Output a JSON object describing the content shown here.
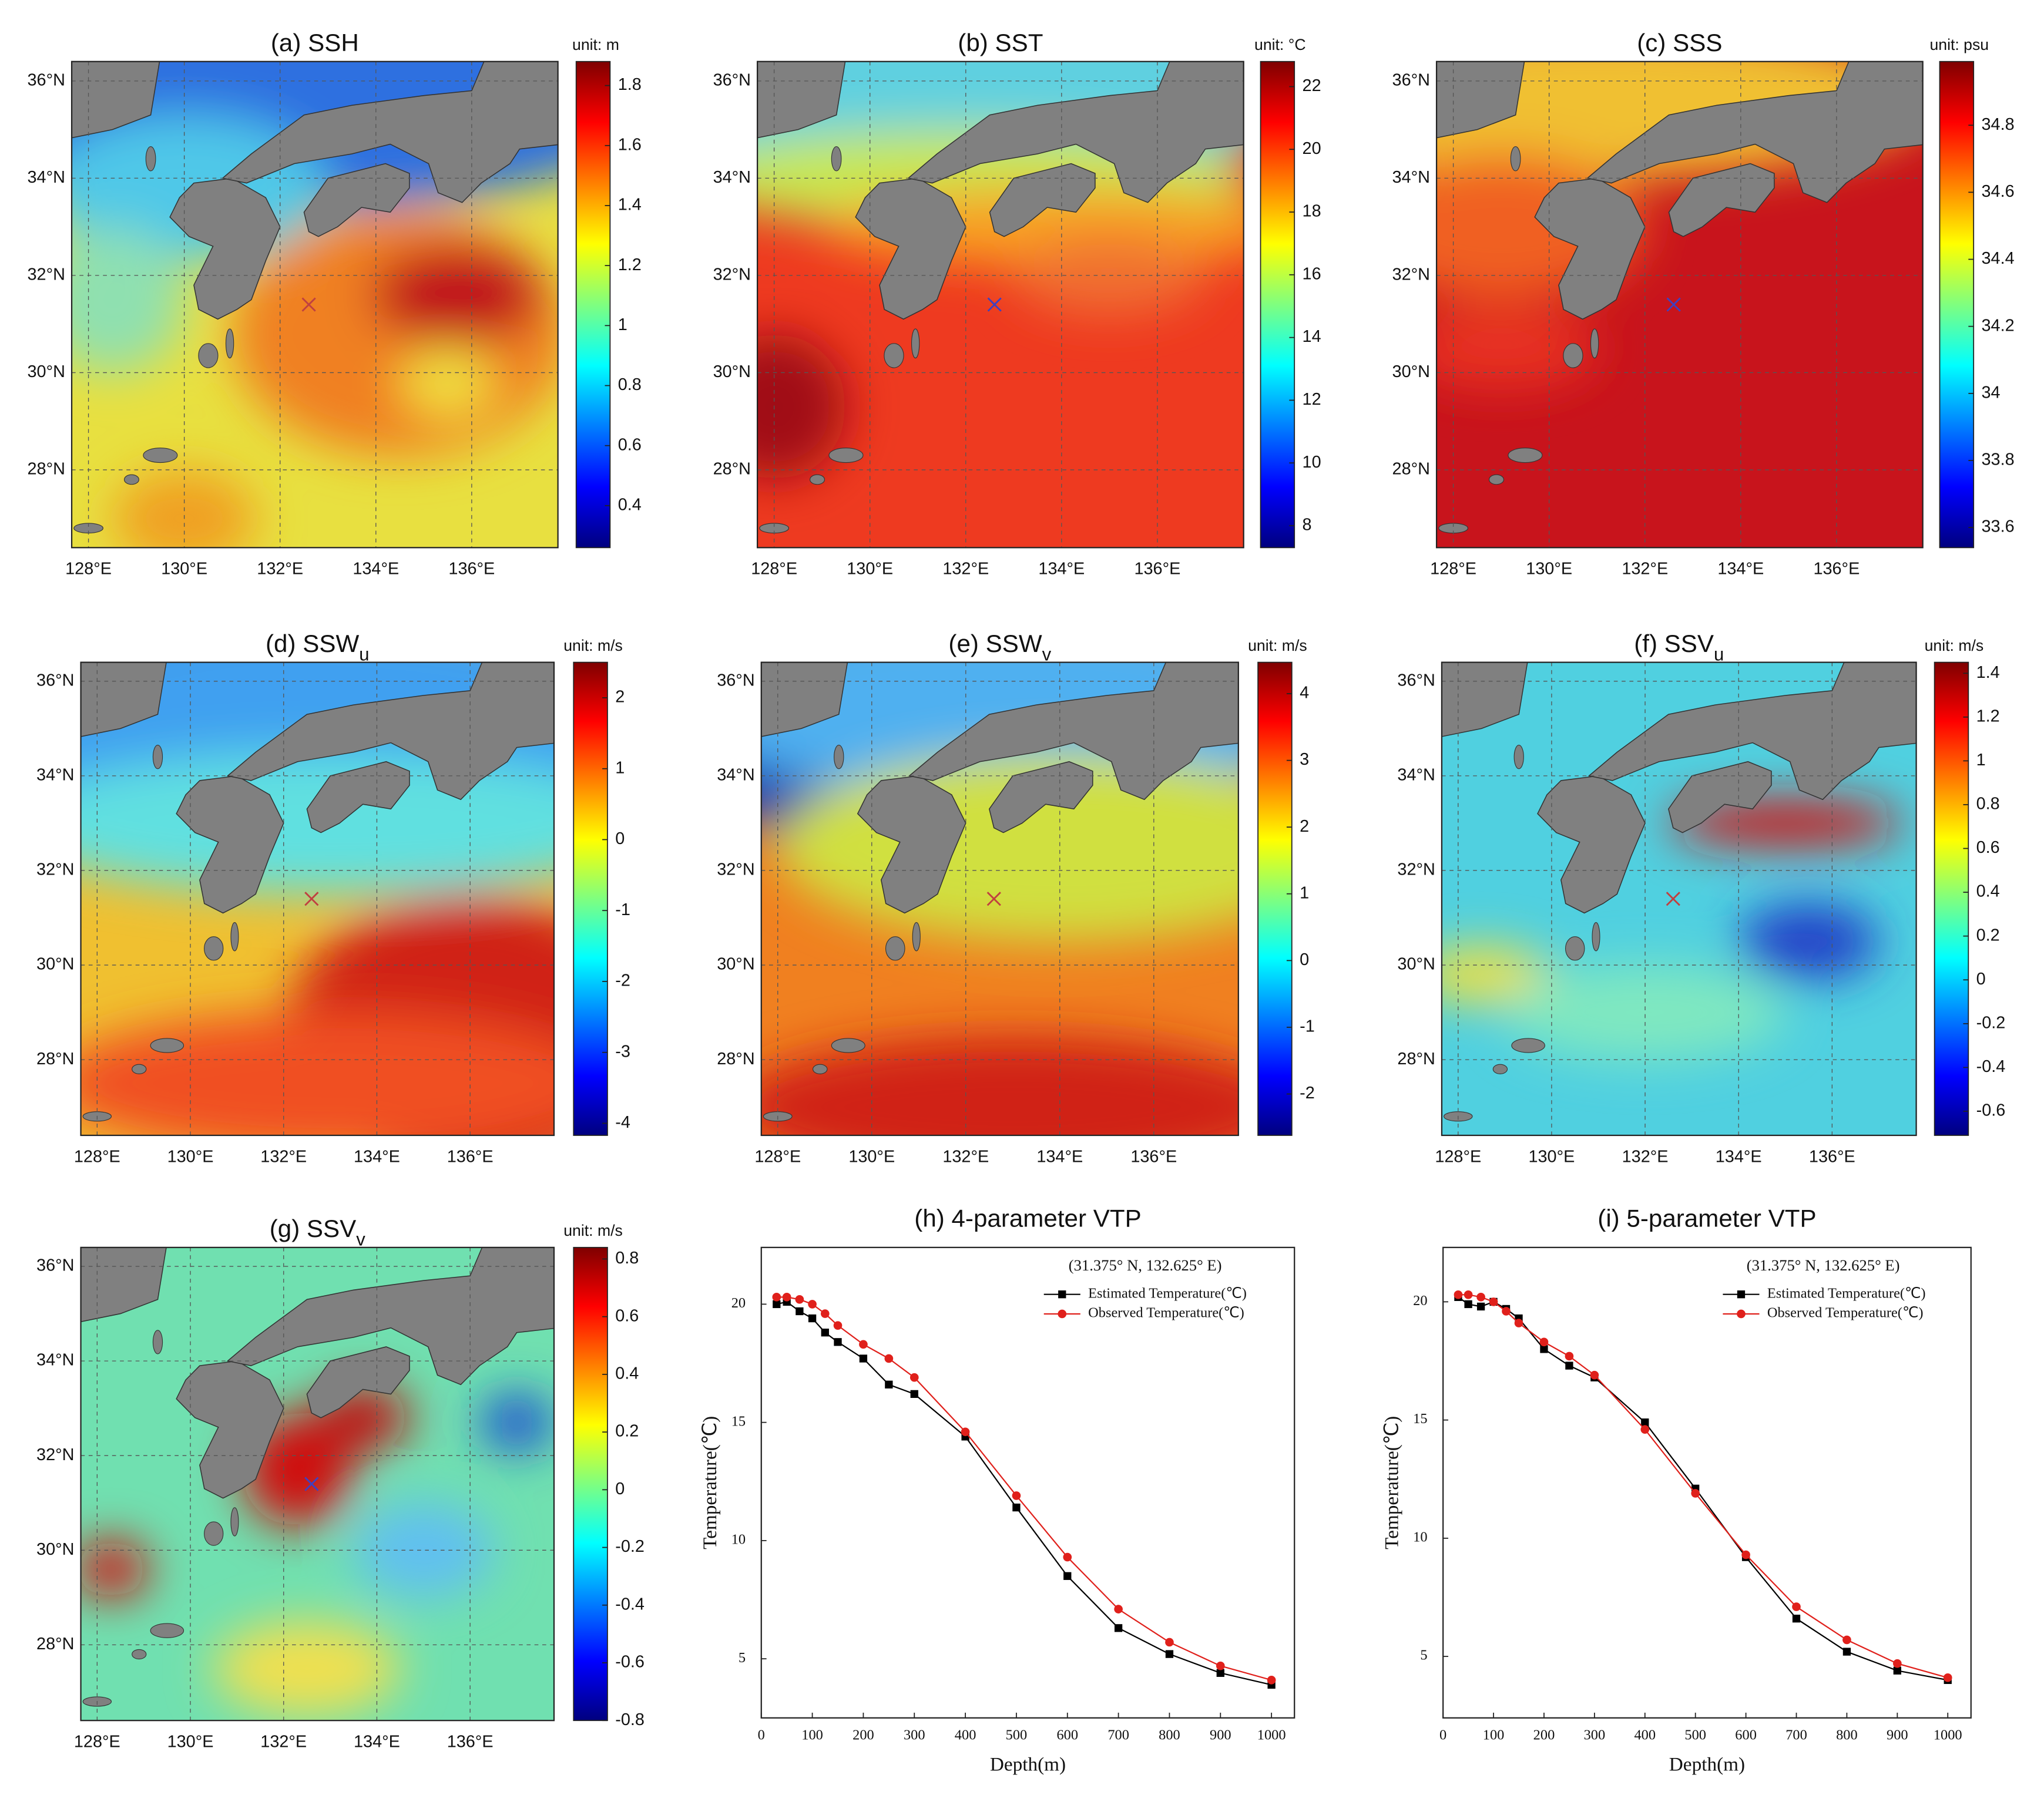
{
  "chart_data": [
    {
      "type": "map",
      "title": "(a) SSH",
      "colorbar_label": "unit: m",
      "colormap": "jet",
      "xlim": [
        127.65,
        137.8
      ],
      "ylim": [
        26.4,
        36.4
      ],
      "xticks": [
        {
          "value": 128,
          "label": "128°E"
        },
        {
          "value": 130,
          "label": "130°E"
        },
        {
          "value": 132,
          "label": "132°E"
        },
        {
          "value": 134,
          "label": "134°E"
        },
        {
          "value": 136,
          "label": "136°E"
        }
      ],
      "yticks": [
        {
          "value": 28,
          "label": "28°N"
        },
        {
          "value": 30,
          "label": "30°N"
        },
        {
          "value": 32,
          "label": "32°N"
        },
        {
          "value": 34,
          "label": "34°N"
        },
        {
          "value": 36,
          "label": "36°N"
        }
      ],
      "clim": [
        0.26,
        1.88
      ],
      "cticks": [
        0.4,
        0.6,
        0.8,
        1,
        1.2,
        1.4,
        1.6,
        1.8
      ],
      "grid": true
    },
    {
      "type": "map",
      "title": "(b) SST",
      "colorbar_label": "unit: °C",
      "colormap": "jet",
      "xlim": [
        127.65,
        137.8
      ],
      "ylim": [
        26.4,
        36.4
      ],
      "xticks": [
        {
          "value": 128,
          "label": "128°E"
        },
        {
          "value": 130,
          "label": "130°E"
        },
        {
          "value": 132,
          "label": "132°E"
        },
        {
          "value": 134,
          "label": "134°E"
        },
        {
          "value": 136,
          "label": "136°E"
        }
      ],
      "yticks": [
        {
          "value": 28,
          "label": "28°N"
        },
        {
          "value": 30,
          "label": "30°N"
        },
        {
          "value": 32,
          "label": "32°N"
        },
        {
          "value": 34,
          "label": "34°N"
        },
        {
          "value": 36,
          "label": "36°N"
        }
      ],
      "clim": [
        7.3,
        22.8
      ],
      "cticks": [
        8,
        10,
        12,
        14,
        16,
        18,
        20,
        22
      ],
      "grid": true
    },
    {
      "type": "map",
      "title": "(c) SSS",
      "colorbar_label": "unit: psu",
      "colormap": "jet",
      "xlim": [
        127.65,
        137.8
      ],
      "ylim": [
        26.4,
        36.4
      ],
      "xticks": [
        {
          "value": 128,
          "label": "128°E"
        },
        {
          "value": 130,
          "label": "130°E"
        },
        {
          "value": 132,
          "label": "132°E"
        },
        {
          "value": 134,
          "label": "134°E"
        },
        {
          "value": 136,
          "label": "136°E"
        }
      ],
      "yticks": [
        {
          "value": 28,
          "label": "28°N"
        },
        {
          "value": 30,
          "label": "30°N"
        },
        {
          "value": 32,
          "label": "32°N"
        },
        {
          "value": 34,
          "label": "34°N"
        },
        {
          "value": 36,
          "label": "36°N"
        }
      ],
      "clim": [
        33.54,
        34.99
      ],
      "cticks": [
        33.6,
        33.8,
        34,
        34.2,
        34.4,
        34.6,
        34.8
      ],
      "grid": true
    },
    {
      "type": "map",
      "title": "(d) SSW",
      "title_subscript": "u",
      "colorbar_label": "unit: m/s",
      "colormap": "jet",
      "xlim": [
        127.65,
        137.8
      ],
      "ylim": [
        26.4,
        36.4
      ],
      "xticks": [
        {
          "value": 128,
          "label": "128°E"
        },
        {
          "value": 130,
          "label": "130°E"
        },
        {
          "value": 132,
          "label": "132°E"
        },
        {
          "value": 134,
          "label": "134°E"
        },
        {
          "value": 136,
          "label": "136°E"
        }
      ],
      "yticks": [
        {
          "value": 28,
          "label": "28°N"
        },
        {
          "value": 30,
          "label": "30°N"
        },
        {
          "value": 32,
          "label": "32°N"
        },
        {
          "value": 34,
          "label": "34°N"
        },
        {
          "value": 36,
          "label": "36°N"
        }
      ],
      "clim": [
        -4.17,
        2.5
      ],
      "cticks": [
        -4,
        -3,
        -2,
        -1,
        0,
        1,
        2
      ],
      "grid": true
    },
    {
      "type": "map",
      "title": "(e) SSW",
      "title_subscript": "v",
      "colorbar_label": "unit: m/s",
      "colormap": "jet",
      "xlim": [
        127.65,
        137.8
      ],
      "ylim": [
        26.4,
        36.4
      ],
      "xticks": [
        {
          "value": 128,
          "label": "128°E"
        },
        {
          "value": 130,
          "label": "130°E"
        },
        {
          "value": 132,
          "label": "132°E"
        },
        {
          "value": 134,
          "label": "134°E"
        },
        {
          "value": 136,
          "label": "136°E"
        }
      ],
      "yticks": [
        {
          "value": 28,
          "label": "28°N"
        },
        {
          "value": 30,
          "label": "30°N"
        },
        {
          "value": 32,
          "label": "32°N"
        },
        {
          "value": 34,
          "label": "34°N"
        },
        {
          "value": 36,
          "label": "36°N"
        }
      ],
      "clim": [
        -2.62,
        4.47
      ],
      "cticks": [
        -2,
        -1,
        0,
        1,
        2,
        3,
        4
      ],
      "grid": true
    },
    {
      "type": "map",
      "title": "(f) SSV",
      "title_subscript": "u",
      "colorbar_label": "unit: m/s",
      "colormap": "jet",
      "xlim": [
        127.65,
        137.8
      ],
      "ylim": [
        26.4,
        36.4
      ],
      "xticks": [
        {
          "value": 128,
          "label": "128°E"
        },
        {
          "value": 130,
          "label": "130°E"
        },
        {
          "value": 132,
          "label": "132°E"
        },
        {
          "value": 134,
          "label": "134°E"
        },
        {
          "value": 136,
          "label": "136°E"
        }
      ],
      "yticks": [
        {
          "value": 28,
          "label": "28°N"
        },
        {
          "value": 30,
          "label": "30°N"
        },
        {
          "value": 32,
          "label": "32°N"
        },
        {
          "value": 34,
          "label": "34°N"
        },
        {
          "value": 36,
          "label": "36°N"
        }
      ],
      "clim": [
        -0.71,
        1.45
      ],
      "cticks": [
        -0.6,
        -0.4,
        -0.2,
        0,
        0.2,
        0.4,
        0.6,
        0.8,
        1,
        1.2,
        1.4
      ],
      "grid": true
    },
    {
      "type": "map",
      "title": "(g) SSV",
      "title_subscript": "v",
      "colorbar_label": "unit: m/s",
      "colormap": "jet",
      "xlim": [
        127.65,
        137.8
      ],
      "ylim": [
        26.4,
        36.4
      ],
      "xticks": [
        {
          "value": 128,
          "label": "128°E"
        },
        {
          "value": 130,
          "label": "130°E"
        },
        {
          "value": 132,
          "label": "132°E"
        },
        {
          "value": 134,
          "label": "134°E"
        },
        {
          "value": 136,
          "label": "136°E"
        }
      ],
      "yticks": [
        {
          "value": 28,
          "label": "28°N"
        },
        {
          "value": 30,
          "label": "30°N"
        },
        {
          "value": 32,
          "label": "32°N"
        },
        {
          "value": 34,
          "label": "34°N"
        },
        {
          "value": 36,
          "label": "36°N"
        }
      ],
      "clim": [
        -0.8,
        0.84
      ],
      "cticks": [
        -0.8,
        -0.6,
        -0.4,
        -0.2,
        0,
        0.2,
        0.4,
        0.6,
        0.8
      ],
      "grid": true
    },
    {
      "type": "line",
      "title": "(h) 4-parameter VTP",
      "annotation": "(31.375° N, 132.625° E)",
      "xlabel": "Depth(m)",
      "ylabel": "Temperature(℃)",
      "x": [
        30,
        50,
        75,
        100,
        125,
        150,
        200,
        250,
        300,
        400,
        500,
        600,
        700,
        800,
        900,
        1000
      ],
      "series": [
        {
          "name": "Estimated Temperature(℃)",
          "color": "#000000",
          "marker": "square",
          "values": [
            20.0,
            20.1,
            19.7,
            19.4,
            18.8,
            18.4,
            17.7,
            16.6,
            16.2,
            14.4,
            11.4,
            8.5,
            6.3,
            5.2,
            4.4,
            3.9
          ]
        },
        {
          "name": "Observed Temperature(℃)",
          "color": "#e0201b",
          "marker": "circle",
          "values": [
            20.3,
            20.3,
            20.2,
            20.0,
            19.6,
            19.1,
            18.3,
            17.7,
            16.9,
            14.6,
            11.9,
            9.3,
            7.1,
            5.7,
            4.7,
            4.1
          ]
        }
      ],
      "xlim": [
        0,
        1045
      ],
      "ylim": [
        2.5,
        22.4
      ],
      "xticks": [
        0,
        100,
        200,
        300,
        400,
        500,
        600,
        700,
        800,
        900,
        1000
      ],
      "yticks": [
        5,
        10,
        15,
        20
      ]
    },
    {
      "type": "line",
      "title": "(i) 5-parameter VTP",
      "annotation": "(31.375° N, 132.625° E)",
      "xlabel": "Depth(m)",
      "ylabel": "Temperature(℃)",
      "x": [
        30,
        50,
        75,
        100,
        125,
        150,
        200,
        250,
        300,
        400,
        500,
        600,
        700,
        800,
        900,
        1000
      ],
      "series": [
        {
          "name": "Estimated Temperature(℃)",
          "color": "#000000",
          "marker": "square",
          "values": [
            20.2,
            19.9,
            19.8,
            20.0,
            19.7,
            19.3,
            18.0,
            17.3,
            16.8,
            14.9,
            12.1,
            9.2,
            6.6,
            5.2,
            4.4,
            4.0
          ]
        },
        {
          "name": "Observed Temperature(℃)",
          "color": "#e0201b",
          "marker": "circle",
          "values": [
            20.3,
            20.3,
            20.2,
            20.0,
            19.6,
            19.1,
            18.3,
            17.7,
            16.9,
            14.6,
            11.9,
            9.3,
            7.1,
            5.7,
            4.7,
            4.1
          ]
        }
      ],
      "xlim": [
        0,
        1046
      ],
      "ylim": [
        2.4,
        22.3
      ],
      "xticks": [
        0,
        100,
        200,
        300,
        400,
        500,
        600,
        700,
        800,
        900,
        1000
      ],
      "yticks": [
        5,
        10,
        15,
        20
      ]
    }
  ]
}
